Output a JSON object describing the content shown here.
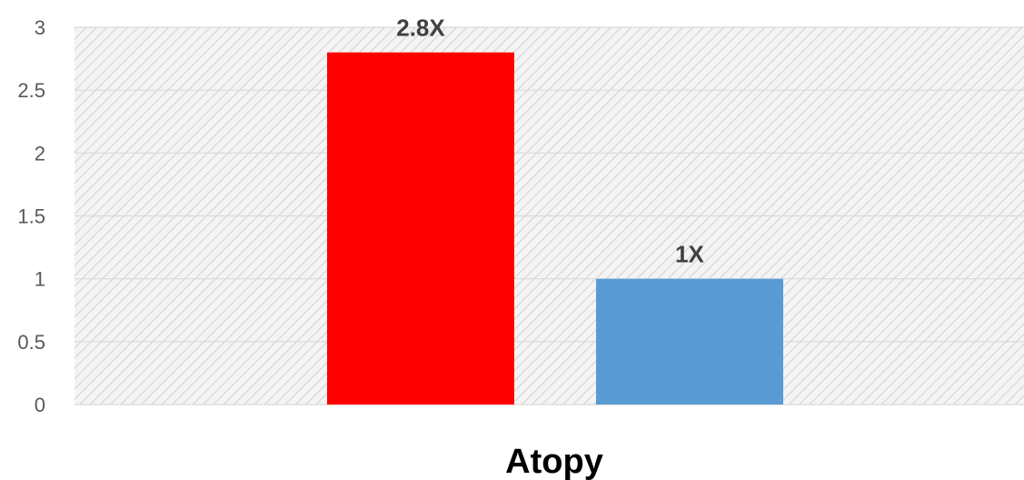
{
  "chart_data": {
    "type": "bar",
    "categories": [
      "",
      ""
    ],
    "values": [
      2.8,
      1
    ],
    "data_labels": [
      "2.8X",
      "1X"
    ],
    "bar_colors": [
      "#ff0000",
      "#5b9bd5"
    ],
    "title": "",
    "xlabel": "Atopy",
    "ylabel": "",
    "ylim": [
      0,
      3
    ],
    "y_ticks": [
      "0",
      "0.5",
      "1",
      "1.5",
      "2",
      "2.5",
      "3"
    ],
    "grid": true,
    "plot_background": "hatched-gray",
    "legend": "none"
  }
}
